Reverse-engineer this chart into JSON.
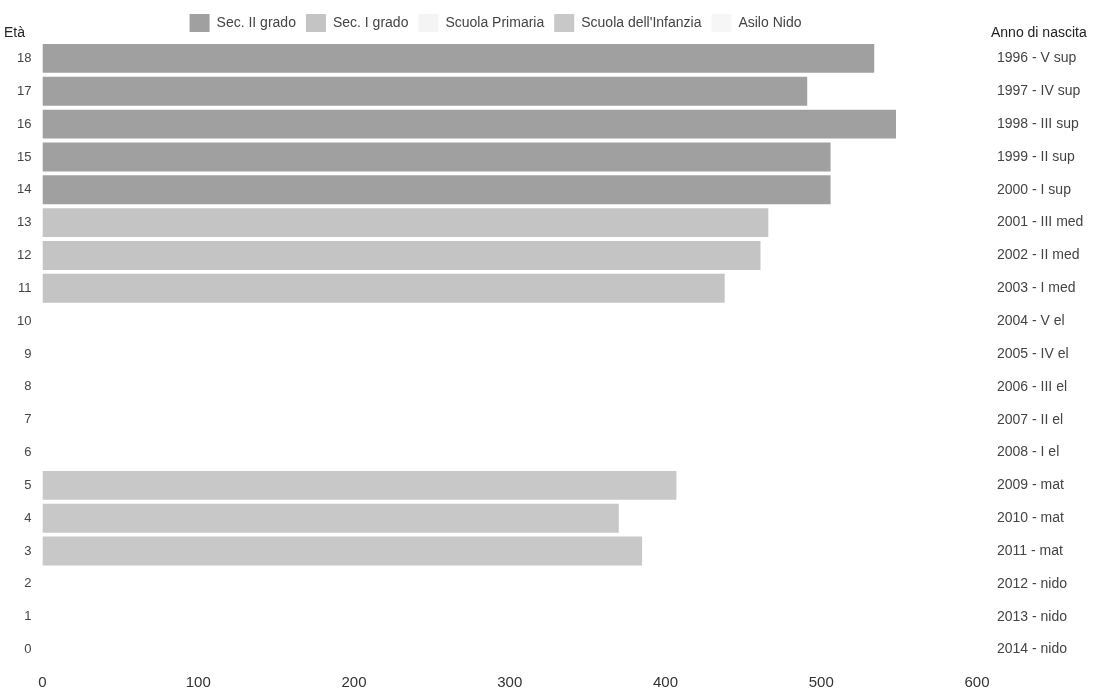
{
  "chart_data": {
    "type": "bar",
    "orientation": "horizontal",
    "stacked": true,
    "ylabel": "Età",
    "y2label": "Anno di nascita",
    "categories": [
      "18",
      "17",
      "16",
      "15",
      "14",
      "13",
      "12",
      "11",
      "10",
      "9",
      "8",
      "7",
      "6",
      "5",
      "4",
      "3",
      "2",
      "1",
      "0"
    ],
    "series": [
      {
        "name": "Sec. II grado",
        "color": "#a0a0a0",
        "values": [
          534,
          491,
          548,
          506,
          506,
          null,
          null,
          null,
          null,
          null,
          null,
          null,
          null,
          null,
          null,
          null,
          null,
          null,
          null
        ]
      },
      {
        "name": "Sec. I grado",
        "color": "#c4c4c4",
        "values": [
          null,
          null,
          null,
          null,
          null,
          466,
          461,
          438,
          null,
          null,
          null,
          null,
          null,
          null,
          null,
          null,
          null,
          null,
          null
        ]
      },
      {
        "name": "Scuola Primaria",
        "color": "#f4f4f4",
        "values": [
          null,
          null,
          null,
          null,
          null,
          null,
          null,
          null,
          null,
          null,
          null,
          null,
          null,
          null,
          null,
          null,
          null,
          null,
          null
        ]
      },
      {
        "name": "Scuola dell'Infanzia",
        "color": "#c8c8c8",
        "values": [
          null,
          null,
          null,
          null,
          null,
          null,
          null,
          null,
          null,
          null,
          null,
          null,
          null,
          407,
          370,
          385,
          null,
          null,
          null
        ]
      },
      {
        "name": "Asilo Nido",
        "color": "#f6f6f6",
        "values": [
          null,
          null,
          null,
          null,
          null,
          null,
          null,
          null,
          null,
          null,
          null,
          null,
          null,
          null,
          null,
          null,
          null,
          null,
          null
        ]
      }
    ],
    "xlim": [
      0,
      600
    ],
    "xticks": [
      0,
      100,
      200,
      300,
      400,
      500,
      600
    ],
    "grid": false,
    "legend": "top",
    "annotations": [
      "1996 - V sup",
      "1997 - IV sup",
      "1998 - III sup",
      "1999 - II sup",
      "2000 - I sup",
      "2001 - III med",
      "2002 - II med",
      "2003 - I med",
      "2004 - V el",
      "2005 - IV el",
      "2006 - III el",
      "2007 - II el",
      "2008 - I el",
      "2009 - mat",
      "2010 - mat",
      "2011 - mat",
      "2012 - nido",
      "2013 - nido",
      "2014 - nido"
    ]
  }
}
